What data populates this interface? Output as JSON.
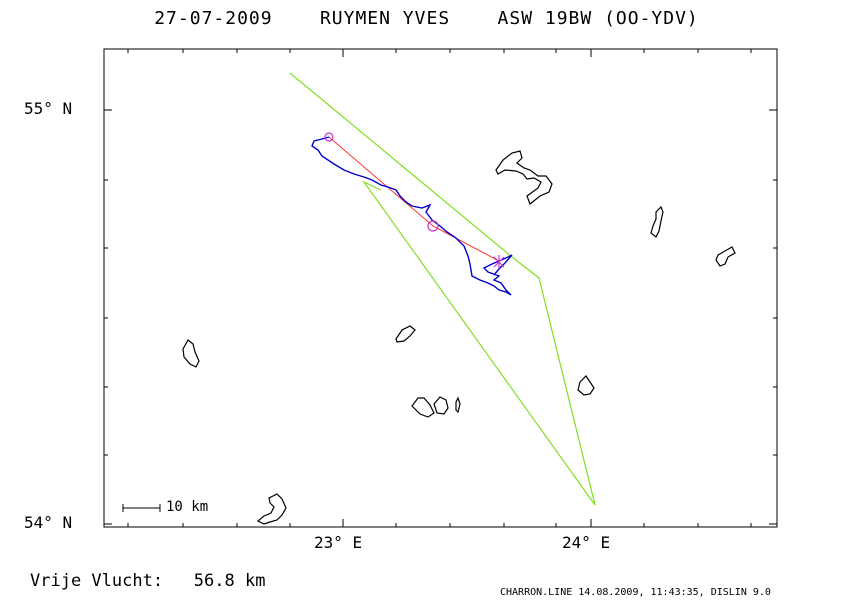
{
  "header": {
    "date": "27-07-2009",
    "pilot": "RUYMEN YVES",
    "glider": "ASW 19BW (OO-YDV)"
  },
  "axes": {
    "y_ticks": [
      "55° N",
      "54° N"
    ],
    "x_ticks": [
      "23° E",
      "24° E"
    ]
  },
  "scale_bar": {
    "label": "10 km"
  },
  "summary": {
    "label": "Vrije Vlucht:",
    "value": "56.8 km"
  },
  "footer": {
    "text": "CHARRON.LINE 14.08.2009, 11:43:35, DISLIN 9.0"
  },
  "colors": {
    "task_line": "#80e020",
    "flight_track": "#0000cc",
    "optimized_line": "#ff3030",
    "turnpoint_marker": "#cc33cc",
    "lakes": "#000000"
  }
}
